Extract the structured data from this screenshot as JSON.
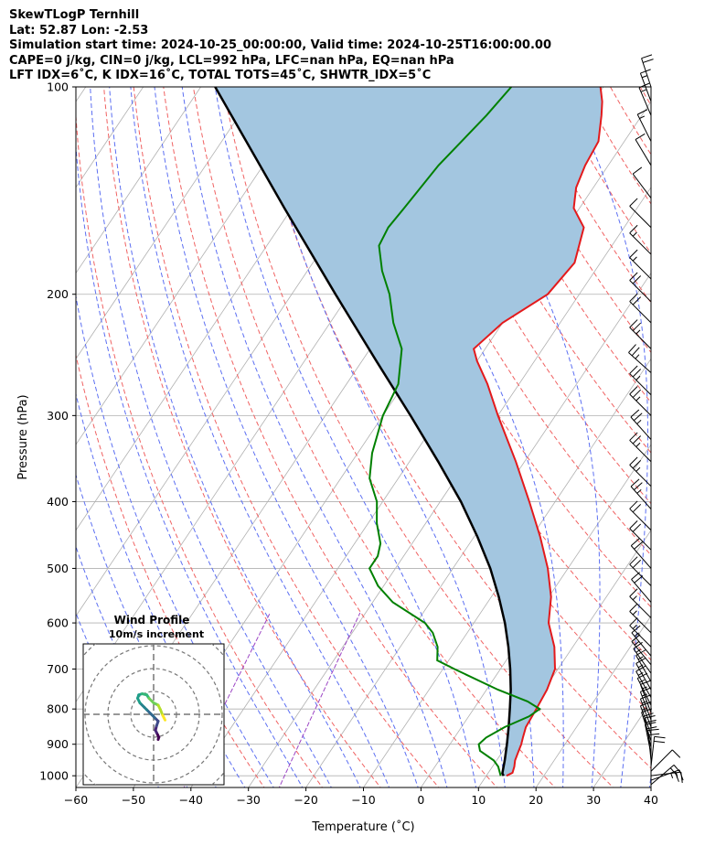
{
  "title_lines": [
    "SkewTLogP Ternhill",
    "Lat: 52.87   Lon: -2.53",
    "Simulation start time: 2024-10-25_00:00:00, Valid time: 2024-10-25T16:00:00.00",
    "CAPE=0 j/kg, CIN=0 j/kg, LCL=992 hPa, LFC=nan hPa, EQ=nan hPa",
    "LFT IDX=6˚C, K IDX=16˚C, TOTAL TOTS=45˚C, SHWTR_IDX=5˚C"
  ],
  "colors": {
    "temperature": "#e31a1c",
    "dewpoint": "#008000",
    "parcel": "#000000",
    "cape_fill": "#a3c6e0",
    "dry_adiabat": "#f06262",
    "moist_adiabat": "#5c6ff2",
    "mixing_ratio": "#9b44c4",
    "isotherm": "#b0b0b0",
    "hodograph_ring": "#777777",
    "wind_barb": "#000000"
  },
  "chart_data": {
    "type": "skew-t log-p",
    "xlabel": "Temperature (˚C)",
    "ylabel": "Pressure (hPa)",
    "xlim": [
      -60,
      40
    ],
    "ylim": [
      1040,
      100
    ],
    "x_ticks": [
      "−60",
      "−50",
      "−40",
      "−30",
      "−20",
      "−10",
      "0",
      "10",
      "20",
      "30",
      "40"
    ],
    "y_ticks": [
      "100",
      "200",
      "300",
      "400",
      "500",
      "600",
      "700",
      "800",
      "900",
      "1000"
    ],
    "y_scale": "log",
    "grid": true,
    "temperature_profile": {
      "pressure": [
        1000,
        990,
        970,
        950,
        925,
        900,
        880,
        850,
        800,
        750,
        700,
        650,
        600,
        550,
        500,
        450,
        400,
        350,
        300,
        270,
        250,
        240,
        220,
        200,
        180,
        160,
        150,
        140,
        130,
        120,
        110,
        105,
        100
      ],
      "temperature": [
        13.5,
        14.2,
        13.8,
        13.2,
        12.8,
        12.4,
        11.9,
        11.2,
        10.9,
        10.5,
        9.5,
        6.8,
        3.0,
        0.4,
        -3.5,
        -8.5,
        -14.5,
        -21.5,
        -30.0,
        -35.5,
        -40.0,
        -42.0,
        -40.0,
        -35.5,
        -34.5,
        -37.0,
        -41.0,
        -43.0,
        -44.0,
        -44.5,
        -47.0,
        -48.5,
        -50.5
      ]
    },
    "dewpoint_profile": {
      "pressure": [
        1000,
        970,
        950,
        920,
        900,
        880,
        850,
        820,
        800,
        780,
        750,
        700,
        680,
        650,
        620,
        600,
        560,
        530,
        500,
        480,
        460,
        430,
        400,
        370,
        340,
        300,
        270,
        240,
        220,
        200,
        185,
        170,
        160,
        150,
        130,
        110,
        100
      ],
      "temperature": [
        12.5,
        11.0,
        9.5,
        6.0,
        5.0,
        5.5,
        7.5,
        10.5,
        11.5,
        8.5,
        2.0,
        -8.0,
        -12.0,
        -13.5,
        -16.0,
        -18.5,
        -26.5,
        -31.0,
        -34.5,
        -34.5,
        -35.5,
        -38.5,
        -41.0,
        -45.0,
        -47.5,
        -50.0,
        -51.0,
        -54.5,
        -59.0,
        -63.0,
        -67.0,
        -70.5,
        -71.0,
        -70.5,
        -69.5,
        -67.0,
        -66.0
      ]
    },
    "parcel_profile": {
      "pressure": [
        1000,
        992,
        950,
        900,
        850,
        800,
        750,
        700,
        650,
        600,
        550,
        500,
        450,
        400,
        350,
        300,
        250,
        200,
        150,
        100
      ],
      "temperature": [
        13.0,
        12.5,
        11.4,
        9.9,
        8.2,
        6.3,
        4.2,
        1.7,
        -1.2,
        -4.6,
        -8.7,
        -13.5,
        -19.4,
        -26.4,
        -35.0,
        -45.2,
        -57.5,
        -72.4,
        -91.3,
        -117.5
      ]
    },
    "shaded_region": "area between temperature and parcel profiles",
    "wind_barbs": {
      "pressure": [
        1030,
        1015,
        1000,
        985,
        970,
        950,
        930,
        910,
        890,
        870,
        850,
        830,
        810,
        790,
        770,
        750,
        730,
        710,
        690,
        670,
        650,
        620,
        590,
        560,
        530,
        500,
        470,
        440,
        410,
        380,
        350,
        325,
        300,
        280,
        260,
        240,
        220,
        205,
        190,
        175,
        160,
        145,
        130,
        120,
        110,
        105,
        100
      ],
      "u_ms": [
        -7,
        -11,
        -8,
        -4,
        -1,
        1,
        2,
        2,
        3,
        3,
        3,
        3,
        3,
        4,
        4,
        4,
        4,
        5,
        5,
        5,
        6,
        6,
        6,
        6,
        7,
        7,
        8,
        8,
        8,
        9,
        9,
        9,
        10,
        10,
        10,
        9,
        8,
        7,
        6,
        5,
        4,
        3,
        3,
        3,
        3,
        3,
        3
      ],
      "v_ms": [
        -6,
        -4,
        -1,
        -4,
        -9,
        -10,
        -10,
        -9,
        -9,
        -8,
        -8,
        -8,
        -8,
        -8,
        -7,
        -7,
        -7,
        -7,
        -6,
        -6,
        -6,
        -6,
        -6,
        -7,
        -7,
        -8,
        -8,
        -8,
        -9,
        -9,
        -9,
        -10,
        -10,
        -10,
        -9,
        -9,
        -8,
        -7,
        -6,
        -5,
        -4,
        -4,
        -5,
        -6,
        -7,
        -8,
        -9
      ]
    },
    "inset": {
      "title": "Wind Profile",
      "subtitle": "10m/s increment",
      "type": "hodograph",
      "ring_increment_ms": 10,
      "rings": 4,
      "colormap": "viridis",
      "trace": {
        "u": [
          2.0,
          2.3,
          1.8,
          1.3,
          0.8,
          1.3,
          2.0,
          0.5,
          -1.0,
          -3.0,
          -4.0,
          -6.0,
          -7.0,
          -6.5,
          -5.0,
          -3.0,
          -2.0,
          0.0,
          2.0,
          3.0,
          4.0,
          4.5,
          5.0
        ],
        "v": [
          -11.0,
          -10.0,
          -9.0,
          -8.0,
          -7.0,
          -5.0,
          -3.0,
          -1.5,
          0.0,
          2.0,
          3.0,
          5.0,
          7.0,
          8.5,
          9.0,
          8.5,
          7.0,
          5.0,
          4.0,
          2.0,
          -0.5,
          -1.5,
          -2.5
        ]
      }
    }
  }
}
